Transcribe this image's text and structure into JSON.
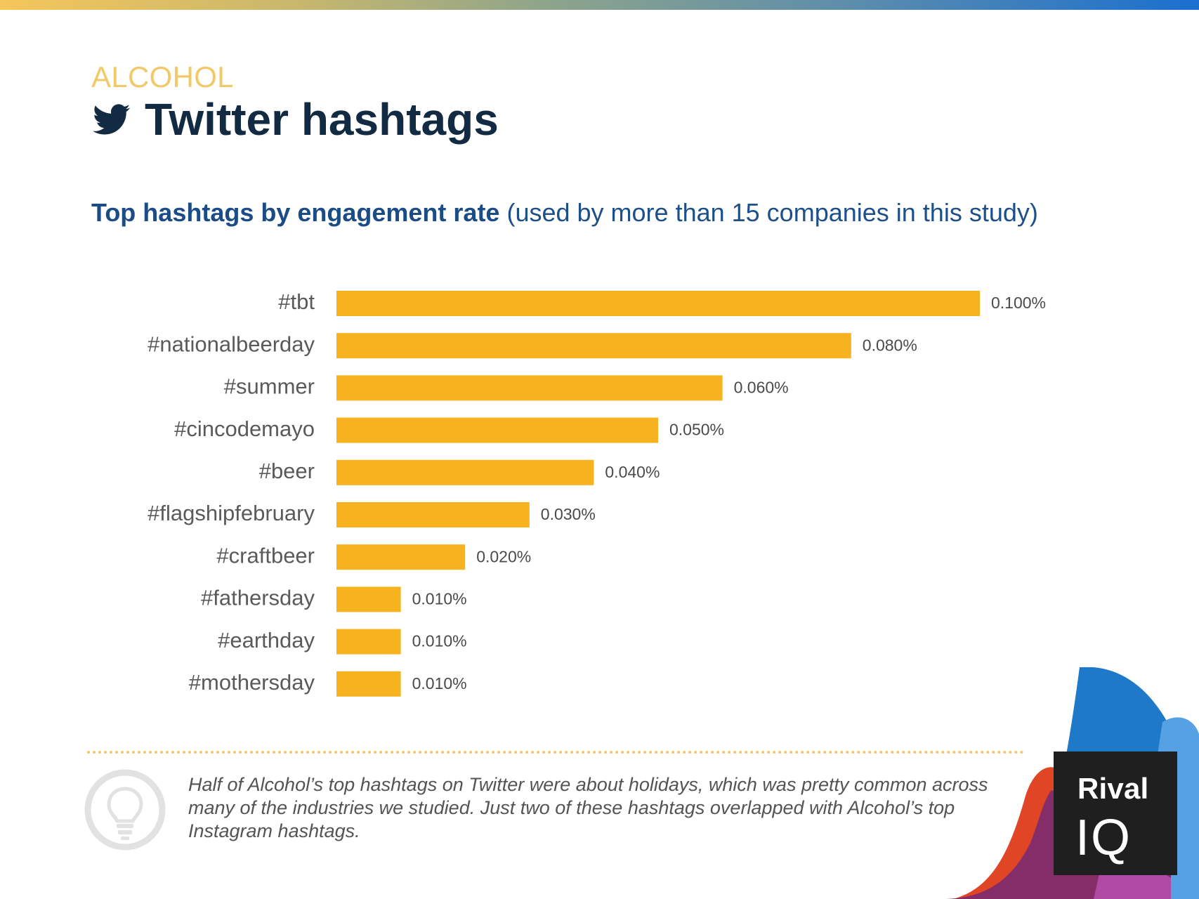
{
  "header": {
    "category": "ALCOHOL",
    "title": "Twitter hashtags",
    "subtitle_bold": "Top hashtags by engagement rate",
    "subtitle_rest": "(used by more than 15 companies in this study)"
  },
  "chart_data": {
    "type": "bar",
    "orientation": "horizontal",
    "categories": [
      "#tbt",
      "#nationalbeerday",
      "#summer",
      "#cincodemayo",
      "#beer",
      "#flagshipfebruary",
      "#craftbeer",
      "#fathersday",
      "#earthday",
      "#mothersday"
    ],
    "values": [
      0.1,
      0.08,
      0.06,
      0.05,
      0.04,
      0.03,
      0.02,
      0.01,
      0.01,
      0.01
    ],
    "value_labels": [
      "0.100%",
      "0.080%",
      "0.060%",
      "0.050%",
      "0.040%",
      "0.030%",
      "0.020%",
      "0.010%",
      "0.010%",
      "0.010%"
    ],
    "xlim": [
      0,
      0.1
    ],
    "grid": false,
    "colors": {
      "bar": "#f6b21f",
      "category_label": "#5a5a5a",
      "value_label": "#4a4a4a"
    }
  },
  "note": {
    "text": "Half of Alcohol’s top hashtags on Twitter were about holidays, which was pretty common across many of the industries we studied. Just two of these hashtags overlapped with Alcohol’s top Instagram hashtags."
  },
  "logo": {
    "line1": "Rival",
    "line2": "IQ"
  },
  "icons": {
    "title": "twitter-icon",
    "note": "lightbulb-icon"
  },
  "colors": {
    "accent_yellow": "#f1c969",
    "title_navy": "#122a42",
    "subtitle_blue": "#1d4f89"
  }
}
